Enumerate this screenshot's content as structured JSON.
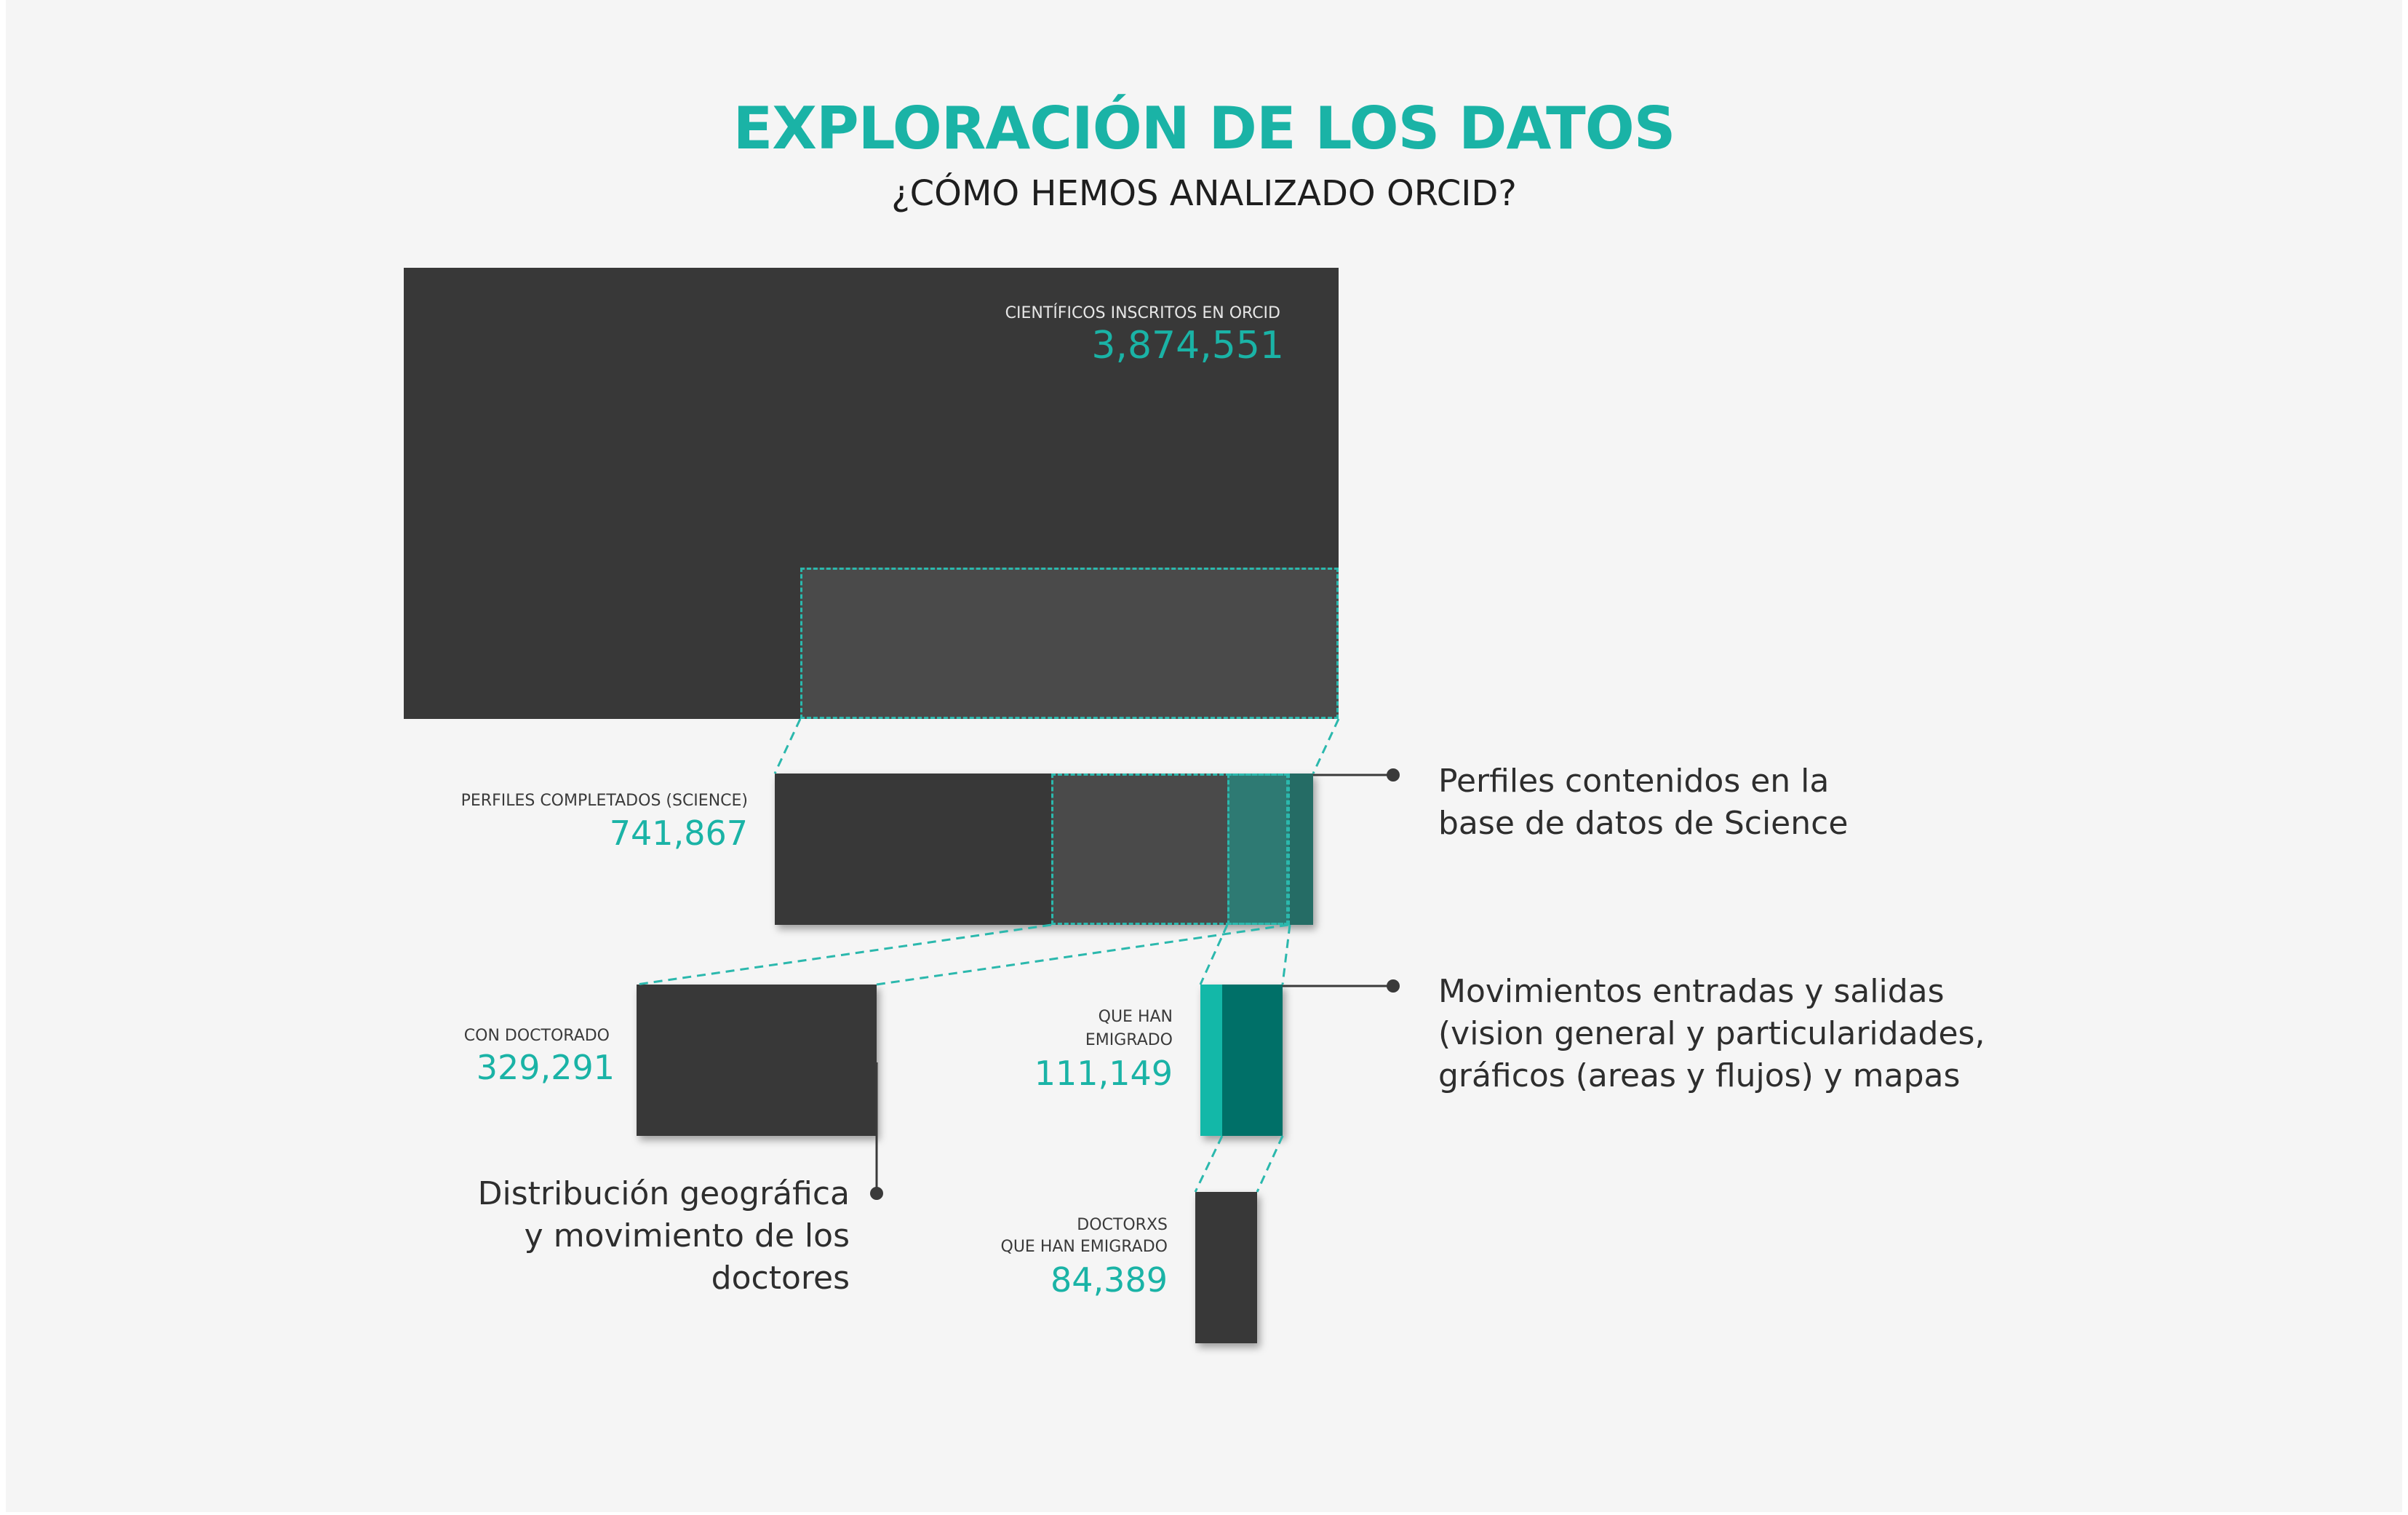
{
  "title": "EXPLORACIÓN DE LOS DATOS",
  "subtitle": "¿CÓMO HEMOS ANALIZADO ORCID?",
  "nodes": {
    "orcid": {
      "label": "CIENTÍFICOS INSCRITOS EN ORCID",
      "value": "3,874,551"
    },
    "science": {
      "label": "PERFILES COMPLETADOS (SCIENCE)",
      "value": "741,867"
    },
    "doctorado": {
      "label": "CON DOCTORADO",
      "value": "329,291"
    },
    "emigrado": {
      "label_line1": "QUE HAN",
      "label_line2": "EMIGRADO",
      "value": "111,149"
    },
    "doctorxs": {
      "label_line1": "DOCTORXS",
      "label_line2": "QUE HAN EMIGRADO",
      "value": "84,389"
    }
  },
  "notes": {
    "science": {
      "line1": "Perfiles contenidos en la",
      "line2": "base de datos de Science"
    },
    "movimientos": {
      "line1": "Movimientos entradas y salidas",
      "line2": "(vision general y particularidades,",
      "line3": "gráficos (areas y flujos) y mapas"
    },
    "distribucion": {
      "line1": "Distribución geográfica",
      "line2": "y movimiento de los",
      "line3": "doctores"
    }
  },
  "colors": {
    "accent": "#1ab3a6",
    "dark_box": "#383838",
    "mid_box": "#4a4a4a",
    "teal_dark": "#007068",
    "teal_bright": "#13b8a8",
    "background": "#f5f5f5"
  }
}
